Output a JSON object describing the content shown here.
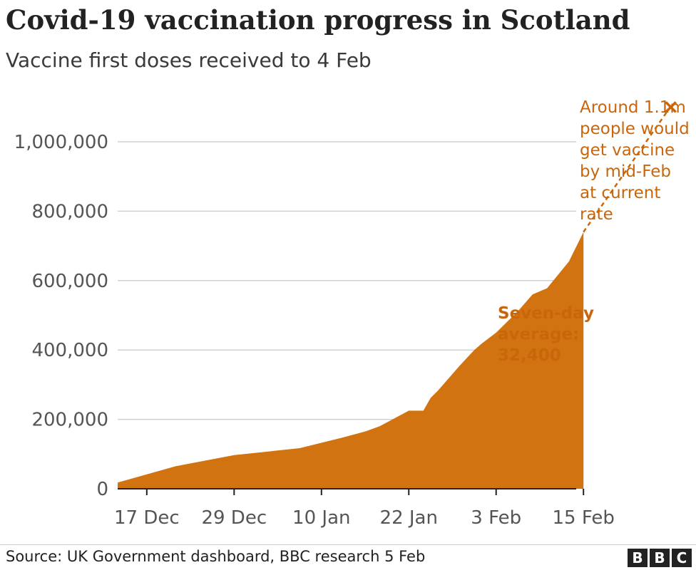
{
  "header": {
    "title": "Covid-19 vaccination progress in Scotland",
    "subtitle": "Vaccine first doses received to 4 Feb"
  },
  "footer": {
    "source": "Source: UK Government dashboard, BBC research 5 Feb",
    "logo": [
      "B",
      "B",
      "C"
    ]
  },
  "colors": {
    "series": "#d17310",
    "annotation": "#c9660b",
    "grid": "#d0d0d0",
    "axis": "#222222",
    "tick_text": "#555555"
  },
  "chart_data": {
    "type": "area",
    "title": "Covid-19 vaccination progress in Scotland",
    "subtitle": "Vaccine first doses received to 4 Feb",
    "xlabel": "",
    "ylabel": "",
    "x_ticks": [
      "17 Dec",
      "29 Dec",
      "10 Jan",
      "22 Jan",
      "3 Feb",
      "15 Feb"
    ],
    "y_ticks": [
      "0",
      "200,000",
      "400,000",
      "600,000",
      "800,000",
      "1,000,000"
    ],
    "y_tick_values": [
      0,
      200000,
      400000,
      600000,
      800000,
      1000000
    ],
    "ylim": [
      0,
      1100000
    ],
    "xlim_day": [
      -4,
      59
    ],
    "grid": true,
    "series": [
      {
        "values": [
          {
            "day": -4,
            "value": 18000
          },
          {
            "day": 4,
            "value": 65000
          },
          {
            "day": 12,
            "value": 97000
          },
          {
            "day": 21,
            "value": 117000
          },
          {
            "day": 27,
            "value": 148000
          },
          {
            "day": 30,
            "value": 165000
          },
          {
            "day": 32,
            "value": 180000
          },
          {
            "day": 36,
            "value": 225000
          },
          {
            "day": 38,
            "value": 225000
          },
          {
            "day": 39,
            "value": 262000
          },
          {
            "day": 40,
            "value": 283000
          },
          {
            "day": 43,
            "value": 355000
          },
          {
            "day": 45,
            "value": 400000
          },
          {
            "day": 46,
            "value": 418000
          },
          {
            "day": 48,
            "value": 450000
          },
          {
            "day": 51,
            "value": 512000
          },
          {
            "day": 53,
            "value": 560000
          },
          {
            "day": 55,
            "value": 578000
          },
          {
            "day": 58,
            "value": 655000
          },
          {
            "day": 60,
            "value": 740000
          }
        ]
      }
    ],
    "projection": {
      "from_day": 60,
      "from_value": 740000,
      "to_day": 72,
      "to_value": 1100000
    },
    "annotations": {
      "projection_lines": [
        "Around 1.1m",
        "people would",
        "get vaccine",
        "by mid-Feb",
        "at current",
        "rate"
      ],
      "average_lines": [
        "Seven-day",
        "average:",
        "32,400"
      ]
    }
  }
}
